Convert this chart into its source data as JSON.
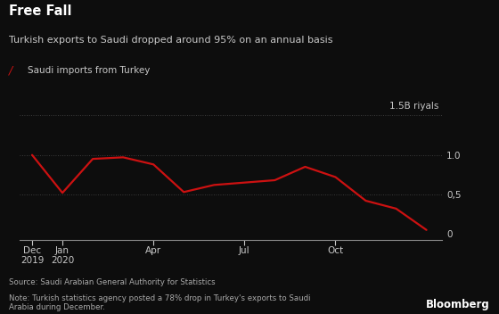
{
  "title": "Free Fall",
  "subtitle": "Turkish exports to Saudi dropped around 95% on an annual basis",
  "legend_label": "Saudi imports from Turkey",
  "source_text": "Source: Saudi Arabian General Authority for Statistics",
  "note_text": "Note: Turkish statistics agency posted a 78% drop in Turkey's exports to Saudi\nArabia during December.",
  "bloomberg_label": "Bloomberg",
  "background_color": "#0d0d0d",
  "text_color": "#c8c8c8",
  "line_color": "#cc1111",
  "grid_color": "#4a4a4a",
  "months": [
    0,
    1,
    2,
    3,
    4,
    5,
    6,
    7,
    8,
    9,
    10,
    11,
    12,
    13
  ],
  "values": [
    1.0,
    0.52,
    0.95,
    0.97,
    0.88,
    0.53,
    0.62,
    0.65,
    0.68,
    0.85,
    0.72,
    0.42,
    0.32,
    0.05
  ],
  "x_tick_positions": [
    0,
    1,
    4,
    7,
    10
  ],
  "x_tick_labels_line1": [
    "Dec",
    "Jan",
    "Apr",
    "Jul",
    "Oct"
  ],
  "x_tick_labels_line2": [
    "2019",
    "2020",
    "",
    "",
    ""
  ],
  "ytick_positions": [
    0,
    0.5,
    1.0
  ],
  "ytick_labels": [
    "0",
    "0,5",
    "1.0"
  ],
  "ylim": [
    -0.08,
    1.65
  ],
  "xlim": [
    -0.4,
    13.5
  ]
}
